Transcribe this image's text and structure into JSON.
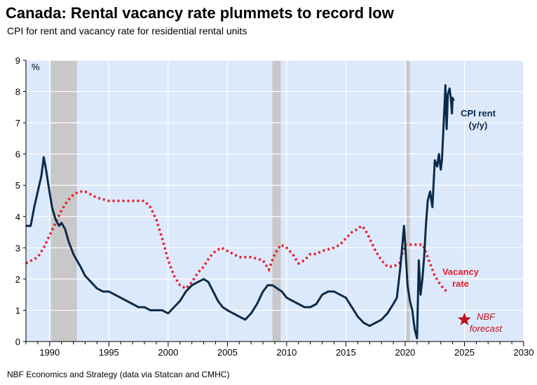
{
  "title": "Canada: Rental vacancy rate plummets to record low",
  "subtitle": "CPI for rent and vacancy rate for residential rental units",
  "source": "NBF Economics and Strategy (data via Statcan and CMHC)",
  "colors": {
    "plot_bg": "#dce9fb",
    "recession": "#c8c8c8",
    "cpi": "#0b2a4a",
    "vacancy": "#e8202a",
    "forecast_marker": "#c0101e"
  },
  "chart_data": {
    "type": "line",
    "title": "Canada: Rental vacancy rate plummets to record low",
    "xlabel": "",
    "ylabel": "%",
    "xlim": [
      1988,
      2030
    ],
    "ylim": [
      0,
      9
    ],
    "x_ticks": [
      1990,
      1995,
      2000,
      2005,
      2010,
      2015,
      2020,
      2025,
      2030
    ],
    "y_ticks": [
      0,
      1,
      2,
      3,
      4,
      5,
      6,
      7,
      8,
      9
    ],
    "grid": true,
    "recession_bands": [
      [
        1990.1,
        1992.3
      ],
      [
        2008.8,
        2009.5
      ],
      [
        2020.1,
        2020.4
      ]
    ],
    "series": [
      {
        "name": "CPI rent (y/y)",
        "label_lines": [
          "CPI rent",
          "(y/y)"
        ],
        "style": "solid",
        "x": [
          1988.0,
          1988.4,
          1988.7,
          1989.0,
          1989.3,
          1989.5,
          1989.7,
          1989.9,
          1990.2,
          1990.5,
          1990.8,
          1991.0,
          1991.3,
          1991.6,
          1992.0,
          1992.3,
          1992.6,
          1993.0,
          1993.5,
          1994.0,
          1994.5,
          1995.0,
          1995.5,
          1996.0,
          1996.5,
          1997.0,
          1997.5,
          1998.0,
          1998.5,
          1999.0,
          1999.5,
          2000.0,
          2000.5,
          2001.0,
          2001.5,
          2002.0,
          2002.5,
          2003.0,
          2003.4,
          2003.8,
          2004.2,
          2004.6,
          2005.0,
          2005.5,
          2006.0,
          2006.5,
          2007.0,
          2007.5,
          2008.0,
          2008.4,
          2008.8,
          2009.2,
          2009.6,
          2010.0,
          2010.5,
          2011.0,
          2011.5,
          2012.0,
          2012.5,
          2013.0,
          2013.5,
          2014.0,
          2014.5,
          2015.0,
          2015.5,
          2016.0,
          2016.5,
          2017.0,
          2017.5,
          2018.0,
          2018.5,
          2019.0,
          2019.3,
          2019.6,
          2019.9,
          2020.0,
          2020.2,
          2020.4,
          2020.6,
          2020.8,
          2021.0,
          2021.15,
          2021.3,
          2021.45,
          2021.6,
          2021.75,
          2021.9,
          2022.1,
          2022.3,
          2022.5,
          2022.7,
          2022.85,
          2023.0,
          2023.1,
          2023.25,
          2023.4,
          2023.5,
          2023.6,
          2023.75,
          2023.85,
          2023.95,
          2024.0,
          2024.1
        ],
        "values": [
          3.7,
          3.7,
          4.3,
          4.8,
          5.3,
          5.9,
          5.5,
          5.0,
          4.3,
          3.9,
          3.7,
          3.8,
          3.6,
          3.2,
          2.8,
          2.6,
          2.4,
          2.1,
          1.9,
          1.7,
          1.6,
          1.6,
          1.5,
          1.4,
          1.3,
          1.2,
          1.1,
          1.1,
          1.0,
          1.0,
          1.0,
          0.9,
          1.1,
          1.3,
          1.6,
          1.8,
          1.9,
          2.0,
          1.9,
          1.6,
          1.3,
          1.1,
          1.0,
          0.9,
          0.8,
          0.7,
          0.9,
          1.2,
          1.6,
          1.8,
          1.8,
          1.7,
          1.6,
          1.4,
          1.3,
          1.2,
          1.1,
          1.1,
          1.2,
          1.5,
          1.6,
          1.6,
          1.5,
          1.4,
          1.1,
          0.8,
          0.6,
          0.5,
          0.6,
          0.7,
          0.9,
          1.2,
          1.4,
          2.4,
          3.7,
          3.1,
          1.8,
          1.3,
          1.0,
          0.4,
          0.1,
          2.6,
          1.5,
          2.0,
          2.7,
          3.7,
          4.5,
          4.8,
          4.3,
          5.8,
          5.6,
          6.0,
          5.5,
          5.8,
          7.0,
          8.2,
          6.8,
          7.9,
          8.1,
          7.8,
          7.3,
          7.8,
          7.7
        ]
      },
      {
        "name": "Vacancy rate",
        "label_lines": [
          "Vacancy",
          "rate"
        ],
        "style": "dotted",
        "x": [
          1988.0,
          1989.0,
          1989.5,
          1990.0,
          1990.5,
          1991.0,
          1991.5,
          1992.0,
          1992.5,
          1993.0,
          1993.5,
          1994.0,
          1995.0,
          1996.0,
          1997.0,
          1998.0,
          1998.5,
          1999.0,
          1999.5,
          2000.0,
          2000.5,
          2001.0,
          2001.5,
          2002.0,
          2002.5,
          2003.0,
          2003.5,
          2004.0,
          2004.5,
          2005.0,
          2005.5,
          2006.0,
          2007.0,
          2008.0,
          2008.5,
          2009.0,
          2009.5,
          2010.0,
          2010.5,
          2011.0,
          2011.5,
          2012.0,
          2012.5,
          2013.0,
          2014.0,
          2014.5,
          2015.0,
          2015.5,
          2016.0,
          2016.3,
          2016.6,
          2017.0,
          2017.5,
          2018.0,
          2018.5,
          2019.0,
          2019.5,
          2020.0,
          2020.5,
          2021.0,
          2021.5,
          2022.0,
          2022.5,
          2023.0,
          2023.5
        ],
        "values": [
          2.5,
          2.7,
          3.0,
          3.4,
          3.8,
          4.2,
          4.5,
          4.7,
          4.8,
          4.8,
          4.7,
          4.6,
          4.5,
          4.5,
          4.5,
          4.5,
          4.3,
          3.9,
          3.3,
          2.6,
          2.1,
          1.8,
          1.7,
          1.9,
          2.2,
          2.4,
          2.7,
          2.9,
          3.0,
          2.9,
          2.8,
          2.7,
          2.7,
          2.6,
          2.3,
          2.8,
          3.1,
          3.0,
          2.8,
          2.5,
          2.6,
          2.8,
          2.8,
          2.9,
          3.0,
          3.1,
          3.3,
          3.5,
          3.6,
          3.7,
          3.6,
          3.3,
          2.9,
          2.6,
          2.4,
          2.4,
          2.5,
          3.1,
          3.1,
          3.1,
          3.1,
          2.6,
          2.1,
          1.8,
          1.6
        ]
      }
    ],
    "annotations": [
      {
        "name": "NBF forecast",
        "label_lines": [
          "NBF",
          "forecast"
        ],
        "x": 2025.0,
        "y": 0.7
      }
    ]
  }
}
